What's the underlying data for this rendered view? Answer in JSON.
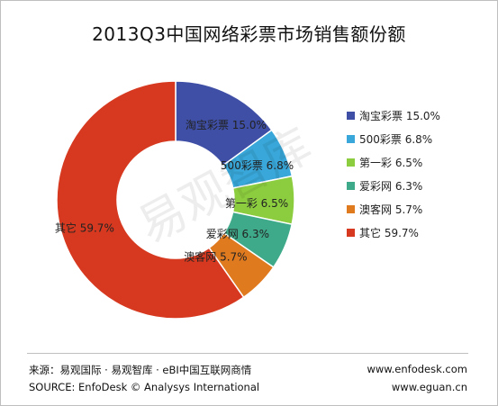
{
  "chart_data": {
    "type": "pie",
    "title": "2013Q3中国网络彩票市场销售额份额",
    "donut": true,
    "slices": [
      {
        "label": "淘宝彩票",
        "value": 15.0,
        "value_text": "15.0%",
        "color": "#3f4fa6"
      },
      {
        "label": "500彩票",
        "value": 6.8,
        "value_text": "6.8%",
        "color": "#39a7d9"
      },
      {
        "label": "第一彩",
        "value": 6.5,
        "value_text": "6.5%",
        "color": "#8ccd3f"
      },
      {
        "label": "爱彩网",
        "value": 6.3,
        "value_text": "6.3%",
        "color": "#3faa8a"
      },
      {
        "label": "澳客网",
        "value": 5.7,
        "value_text": "5.7%",
        "color": "#e07a1f"
      },
      {
        "label": "其它",
        "value": 59.7,
        "value_text": "59.7%",
        "color": "#d6391f"
      }
    ],
    "legend_position": "right"
  },
  "watermark_text": "易观智库",
  "footer": {
    "source_cn": "来源：易观国际 · 易观智库 · eBI中国互联网商情",
    "source_en": "SOURCE: EnfoDesk © Analysys International",
    "url1": "www.enfodesk.com",
    "url2": "www.eguan.cn"
  }
}
